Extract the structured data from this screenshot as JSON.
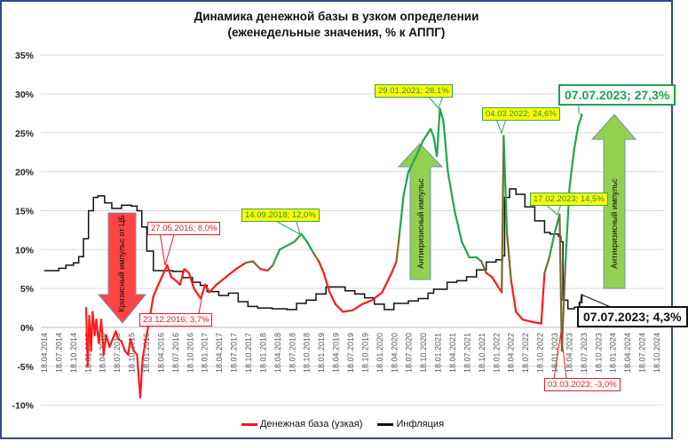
{
  "chart_data": {
    "type": "line",
    "title": "Динамика денежной базы в узком определении",
    "subtitle": "(еженедельные значения, % к АППГ)",
    "ylim": [
      -10,
      35
    ],
    "y_ticks": [
      "-10%",
      "-5%",
      "0%",
      "5%",
      "10%",
      "15%",
      "20%",
      "25%",
      "30%",
      "35%"
    ],
    "x_ticks": [
      "18.04.2014",
      "18.07.2014",
      "18.10.2014",
      "18.01.2015",
      "18.04.2015",
      "18.07.2015",
      "18.10.2015",
      "18.01.2016",
      "18.04.2016",
      "18.07.2016",
      "18.10.2016",
      "18.01.2017",
      "18.04.2017",
      "18.07.2017",
      "18.10.2017",
      "18.01.2018",
      "18.04.2018",
      "18.07.2018",
      "18.10.2018",
      "18.01.2019",
      "18.04.2019",
      "18.07.2019",
      "18.10.2019",
      "18.01.2020",
      "18.04.2020",
      "18.07.2020",
      "18.10.2020",
      "18.01.2021",
      "18.04.2021",
      "18.07.2021",
      "18.10.2021",
      "18.01.2022",
      "18.04.2022",
      "18.07.2022",
      "18.10.2022",
      "18.01.2023",
      "18.04.2023",
      "18.07.2023",
      "18.10.2023",
      "18.01.2024",
      "18.04.2024",
      "18.07.2024",
      "18.10.2024"
    ],
    "grid": true,
    "legend_position": "bottom",
    "colors": {
      "money_base_low": "#ff1a1a",
      "money_base_high": "#1fa550",
      "inflation": "#111111"
    },
    "series": [
      {
        "name": "Денежная база (узкая)",
        "points": [
          [
            "2015-01-05",
            2.5,
            "r"
          ],
          [
            "2015-01-15",
            -5,
            "r"
          ],
          [
            "2015-01-25",
            1.5,
            "r"
          ],
          [
            "2015-02-05",
            -3,
            "r"
          ],
          [
            "2015-02-15",
            2,
            "r"
          ],
          [
            "2015-02-28",
            -1,
            "r"
          ],
          [
            "2015-03-10",
            1,
            "r"
          ],
          [
            "2015-03-25",
            -2,
            "r"
          ],
          [
            "2015-04-10",
            1,
            "r"
          ],
          [
            "2015-04-25",
            -3.5,
            "r"
          ],
          [
            "2015-05-10",
            -1,
            "r"
          ],
          [
            "2015-06-01",
            -2.5,
            "r"
          ],
          [
            "2015-06-20",
            -1.5,
            "r"
          ],
          [
            "2015-07-10",
            -0.5,
            "r"
          ],
          [
            "2015-07-25",
            -1.5,
            "r"
          ],
          [
            "2015-08-15",
            -1.8,
            "r"
          ],
          [
            "2015-09-05",
            -3,
            "r"
          ],
          [
            "2015-09-25",
            -3.5,
            "r"
          ],
          [
            "2015-10-10",
            -1.5,
            "r"
          ],
          [
            "2015-10-30",
            -3,
            "r"
          ],
          [
            "2015-11-20",
            -3.5,
            "r"
          ],
          [
            "2015-12-10",
            -9,
            "r"
          ],
          [
            "2015-12-25",
            -4,
            "r"
          ],
          [
            "2016-01-10",
            -2,
            "r"
          ],
          [
            "2016-02-01",
            0.5,
            "r"
          ],
          [
            "2016-03-01",
            4,
            "r"
          ],
          [
            "2016-04-01",
            5.5,
            "r"
          ],
          [
            "2016-05-27",
            8.0,
            "r"
          ],
          [
            "2016-06-20",
            6.5,
            "r"
          ],
          [
            "2016-07-20",
            6,
            "r"
          ],
          [
            "2016-08-15",
            5.5,
            "r"
          ],
          [
            "2016-09-10",
            7.5,
            "r"
          ],
          [
            "2016-10-10",
            7,
            "r"
          ],
          [
            "2016-11-10",
            5,
            "r"
          ],
          [
            "2016-12-23",
            3.7,
            "r"
          ],
          [
            "2017-01-20",
            5.5,
            "r"
          ],
          [
            "2017-02-15",
            4.5,
            "r"
          ],
          [
            "2017-04-01",
            5.5,
            "r"
          ],
          [
            "2017-06-01",
            6.5,
            "r"
          ],
          [
            "2017-08-01",
            7.5,
            "r"
          ],
          [
            "2017-10-01",
            8.3,
            "r"
          ],
          [
            "2017-11-15",
            8.5,
            "g"
          ],
          [
            "2018-01-01",
            7.5,
            "r"
          ],
          [
            "2018-02-15",
            7.3,
            "r"
          ],
          [
            "2018-03-20",
            8,
            "g"
          ],
          [
            "2018-05-01",
            10,
            "g"
          ],
          [
            "2018-06-15",
            10.5,
            "g"
          ],
          [
            "2018-08-01",
            11,
            "g"
          ],
          [
            "2018-09-14",
            12.0,
            "g"
          ],
          [
            "2018-10-20",
            11,
            "g"
          ],
          [
            "2018-12-01",
            9.5,
            "g"
          ],
          [
            "2019-01-01",
            8.5,
            "r"
          ],
          [
            "2019-02-01",
            7,
            "r"
          ],
          [
            "2019-03-10",
            4.5,
            "r"
          ],
          [
            "2019-04-15",
            3,
            "r"
          ],
          [
            "2019-06-01",
            2,
            "r"
          ],
          [
            "2019-08-01",
            2.2,
            "r"
          ],
          [
            "2019-10-01",
            3,
            "r"
          ],
          [
            "2019-12-01",
            3.5,
            "r"
          ],
          [
            "2020-02-01",
            4.5,
            "r"
          ],
          [
            "2020-04-01",
            7,
            "r"
          ],
          [
            "2020-05-01",
            8.5,
            "r"
          ],
          [
            "2020-05-20",
            12,
            "g"
          ],
          [
            "2020-06-15",
            17,
            "g"
          ],
          [
            "2020-07-15",
            20,
            "g"
          ],
          [
            "2020-09-01",
            22,
            "g"
          ],
          [
            "2020-10-15",
            24,
            "g"
          ],
          [
            "2020-12-01",
            25.5,
            "g"
          ],
          [
            "2020-12-20",
            24.5,
            "g"
          ],
          [
            "2021-01-10",
            22,
            "g"
          ],
          [
            "2021-01-29",
            28.1,
            "g"
          ],
          [
            "2021-02-20",
            26.5,
            "g"
          ],
          [
            "2021-03-20",
            20,
            "g"
          ],
          [
            "2021-05-01",
            15,
            "g"
          ],
          [
            "2021-06-15",
            11,
            "g"
          ],
          [
            "2021-08-01",
            9,
            "g"
          ],
          [
            "2021-09-15",
            9,
            "g"
          ],
          [
            "2021-10-15",
            8.5,
            "g"
          ],
          [
            "2021-11-15",
            7,
            "r"
          ],
          [
            "2021-12-20",
            6.5,
            "r"
          ],
          [
            "2022-02-20",
            4.5,
            "r"
          ],
          [
            "2022-03-04",
            24.6,
            "g"
          ],
          [
            "2022-03-25",
            12,
            "g"
          ],
          [
            "2022-04-20",
            6,
            "r"
          ],
          [
            "2022-05-20",
            2,
            "r"
          ],
          [
            "2022-07-01",
            1,
            "r"
          ],
          [
            "2022-09-01",
            0.7,
            "r"
          ],
          [
            "2022-10-25",
            0.5,
            "r"
          ],
          [
            "2022-11-15",
            7,
            "r"
          ],
          [
            "2022-12-15",
            9,
            "g"
          ],
          [
            "2023-01-15",
            12,
            "g"
          ],
          [
            "2023-02-17",
            14.5,
            "g"
          ],
          [
            "2023-03-03",
            -3.0,
            "r"
          ],
          [
            "2023-03-25",
            8,
            "g"
          ],
          [
            "2023-04-20",
            18,
            "g"
          ],
          [
            "2023-05-20",
            23,
            "g"
          ],
          [
            "2023-06-15",
            26,
            "g"
          ],
          [
            "2023-07-07",
            27.3,
            "g"
          ]
        ]
      },
      {
        "name": "Инфляция",
        "points": [
          [
            "2014-04-18",
            7.3
          ],
          [
            "2014-07-18",
            7.6
          ],
          [
            "2014-09-01",
            8.0
          ],
          [
            "2014-10-18",
            8.3
          ],
          [
            "2014-11-20",
            9.1
          ],
          [
            "2014-12-20",
            11.4
          ],
          [
            "2015-01-20",
            15
          ],
          [
            "2015-02-20",
            16.7
          ],
          [
            "2015-03-20",
            16.9
          ],
          [
            "2015-05-01",
            16
          ],
          [
            "2015-06-15",
            15.3
          ],
          [
            "2015-08-15",
            15.7
          ],
          [
            "2015-10-15",
            15.6
          ],
          [
            "2015-11-20",
            15.0
          ],
          [
            "2015-12-20",
            12.9
          ],
          [
            "2016-01-20",
            9.8
          ],
          [
            "2016-03-01",
            7.3
          ],
          [
            "2016-05-01",
            7.3
          ],
          [
            "2016-07-01",
            7.2
          ],
          [
            "2016-09-01",
            6.4
          ],
          [
            "2016-11-01",
            5.8
          ],
          [
            "2016-12-20",
            5.4
          ],
          [
            "2017-02-01",
            4.6
          ],
          [
            "2017-04-15",
            4.1
          ],
          [
            "2017-06-15",
            4.4
          ],
          [
            "2017-08-15",
            3.3
          ],
          [
            "2017-10-15",
            2.7
          ],
          [
            "2017-12-15",
            2.5
          ],
          [
            "2018-03-15",
            2.4
          ],
          [
            "2018-06-15",
            2.3
          ],
          [
            "2018-08-15",
            3.1
          ],
          [
            "2018-10-15",
            3.5
          ],
          [
            "2018-12-15",
            4.3
          ],
          [
            "2019-02-15",
            5.2
          ],
          [
            "2019-04-15",
            5.2
          ],
          [
            "2019-06-15",
            4.7
          ],
          [
            "2019-08-15",
            4.3
          ],
          [
            "2019-10-15",
            3.8
          ],
          [
            "2019-12-15",
            3.0
          ],
          [
            "2020-02-15",
            2.3
          ],
          [
            "2020-04-15",
            3.1
          ],
          [
            "2020-07-15",
            3.4
          ],
          [
            "2020-09-15",
            3.7
          ],
          [
            "2020-11-15",
            4.4
          ],
          [
            "2020-12-20",
            4.9
          ],
          [
            "2021-03-15",
            5.8
          ],
          [
            "2021-05-15",
            6.0
          ],
          [
            "2021-07-15",
            6.5
          ],
          [
            "2021-09-15",
            7.4
          ],
          [
            "2021-11-15",
            8.4
          ],
          [
            "2022-01-15",
            8.7
          ],
          [
            "2022-02-25",
            9.2
          ],
          [
            "2022-03-10",
            16.7
          ],
          [
            "2022-04-10",
            17.8
          ],
          [
            "2022-05-20",
            17.1
          ],
          [
            "2022-07-15",
            15.5
          ],
          [
            "2022-09-15",
            13.7
          ],
          [
            "2022-11-15",
            12.2
          ],
          [
            "2022-12-20",
            12.0
          ],
          [
            "2023-02-10",
            11.7
          ],
          [
            "2023-02-25",
            11.0
          ],
          [
            "2023-03-10",
            3.5
          ],
          [
            "2023-04-10",
            2.4
          ],
          [
            "2023-05-20",
            2.6
          ],
          [
            "2023-06-20",
            3.2
          ],
          [
            "2023-07-07",
            4.3
          ]
        ]
      }
    ],
    "annotations": {
      "a2016_peak": "27.05.2016; 8,0%",
      "a2016_low": "23.12.2016; 3,7%",
      "a2018": "14.09.2018; 12,0%",
      "a2021": "29.01.2021; 28,1%",
      "a2022": "04.03.2022; 24,6%",
      "a2023_feb": "17.02.2023; 14,5%",
      "a2023_mar": "03.03.2023; -3,0%",
      "a2023_mb": "07.07.2023; 27,3%",
      "a2023_inf": "07.07.2023; 4,3%"
    },
    "arrows": {
      "crisis": "Кризисный импульс от ЦБ",
      "anticrisis1": "Антикризисный импульс",
      "anticrisis2": "Антикризисный импульс"
    }
  }
}
